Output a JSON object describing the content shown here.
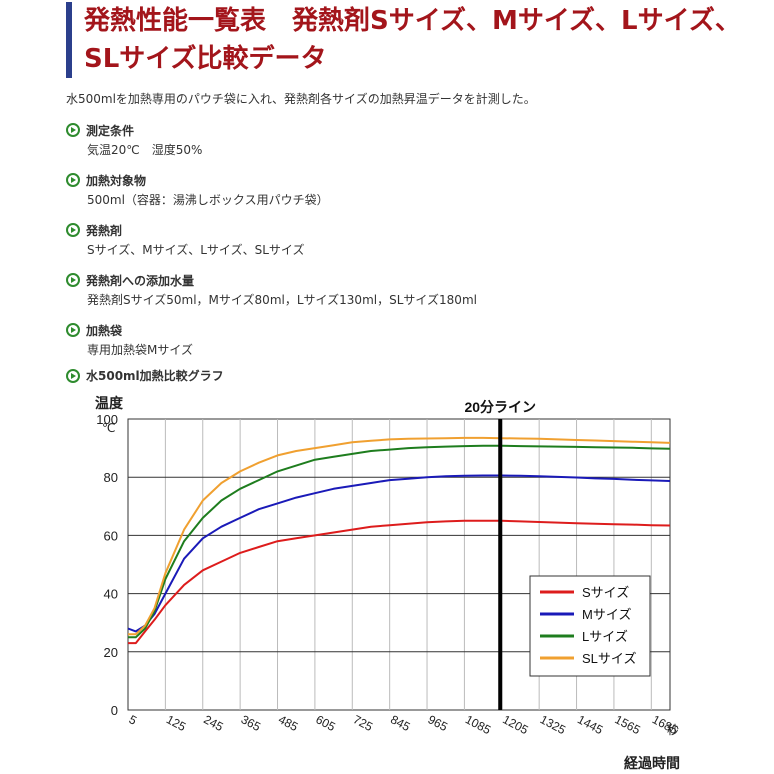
{
  "header": {
    "title": "発熱性能一覧表　発熱剤Sサイズ、Mサイズ、Lサイズ、SLサイズ比較データ",
    "intro": "水500mlを加熱専用のパウチ袋に入れ、発熱剤各サイズの加熱昇温データを計測した。"
  },
  "conditions": [
    {
      "label": "測定条件",
      "value": "気温20℃　湿度50%"
    },
    {
      "label": "加熱対象物",
      "value": "500ml（容器：湯沸しボックス用パウチ袋）"
    },
    {
      "label": "発熱剤",
      "value": "Sサイズ、Mサイズ、Lサイズ、SLサイズ"
    },
    {
      "label": "発熱剤への添加水量",
      "value": "発熱剤Sサイズ50ml，Mサイズ80ml，Lサイズ130ml，SLサイズ180ml"
    },
    {
      "label": "加熱袋",
      "value": "専用加熱袋Mサイズ"
    }
  ],
  "graph_title": "水500ml加熱比較グラフ",
  "chart_data": {
    "type": "line",
    "ylabel": "温度",
    "yunit": "℃",
    "xlabel": "経過時間",
    "xunit": "秒",
    "ylim": [
      0,
      100
    ],
    "yticks": [
      0,
      20,
      40,
      60,
      80,
      100
    ],
    "xlim": [
      5,
      1745
    ],
    "xticks": [
      5,
      125,
      245,
      365,
      485,
      605,
      725,
      845,
      965,
      1085,
      1205,
      1325,
      1445,
      1565,
      1685
    ],
    "grid": true,
    "legend_position": "bottom-right",
    "annotation": {
      "label": "20分ライン",
      "x": 1200
    },
    "x": [
      5,
      30,
      60,
      90,
      125,
      185,
      245,
      305,
      365,
      425,
      485,
      545,
      605,
      665,
      725,
      785,
      845,
      905,
      965,
      1025,
      1085,
      1145,
      1205,
      1265,
      1325,
      1385,
      1445,
      1505,
      1565,
      1625,
      1685,
      1745
    ],
    "series": [
      {
        "name": "Sサイズ",
        "color": "#dd1c1c",
        "values": [
          23,
          23,
          27,
          31,
          36,
          43,
          48,
          51,
          54,
          56,
          58,
          59,
          60,
          61,
          62,
          63,
          63.5,
          64,
          64.5,
          64.8,
          65,
          65,
          65,
          64.8,
          64.6,
          64.4,
          64.2,
          64,
          63.8,
          63.7,
          63.5,
          63.4
        ]
      },
      {
        "name": "Mサイズ",
        "color": "#1a1ab8",
        "values": [
          28,
          27,
          29,
          33,
          40,
          52,
          59,
          63,
          66,
          69,
          71,
          73,
          74.5,
          76,
          77,
          78,
          79,
          79.5,
          80,
          80.3,
          80.5,
          80.6,
          80.6,
          80.5,
          80.3,
          80.1,
          79.9,
          79.6,
          79.4,
          79.1,
          78.9,
          78.7
        ]
      },
      {
        "name": "Lサイズ",
        "color": "#1e7d1e",
        "values": [
          25,
          25,
          28,
          34,
          45,
          58,
          66,
          72,
          76,
          79,
          82,
          84,
          86,
          87,
          88,
          89,
          89.5,
          90,
          90.3,
          90.5,
          90.7,
          90.8,
          90.8,
          90.7,
          90.6,
          90.5,
          90.4,
          90.3,
          90.2,
          90.1,
          89.9,
          89.8
        ]
      },
      {
        "name": "SLサイズ",
        "color": "#f0a030",
        "values": [
          26,
          26,
          29,
          35,
          47,
          62,
          72,
          78,
          82,
          85,
          87.5,
          89,
          90,
          91,
          92,
          92.5,
          93,
          93.2,
          93.3,
          93.4,
          93.5,
          93.5,
          93.4,
          93.3,
          93.2,
          93,
          92.8,
          92.6,
          92.4,
          92.2,
          92,
          91.8
        ]
      }
    ]
  }
}
